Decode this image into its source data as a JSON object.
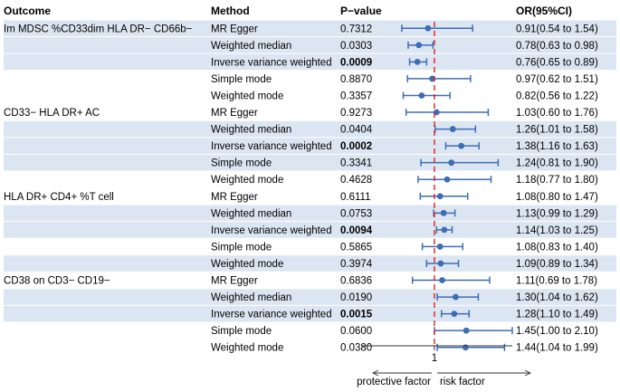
{
  "chart_data": {
    "type": "forest",
    "headers": {
      "outcome": "Outcome",
      "method": "Method",
      "pvalue": "P−value",
      "or": "OR(95%CI)"
    },
    "reference_value": 1,
    "reference_label": "1",
    "xlim": [
      0.4,
      2.1
    ],
    "axis_labels": {
      "left": "protective factor",
      "right": "risk factor"
    },
    "colors": {
      "shade": "#dce6f2",
      "point": "#3d6db5",
      "reference": "#e02020",
      "text": "#111111"
    },
    "rows": [
      {
        "outcome": "Im MDSC %CD33dim HLA DR− CD66b−",
        "method": "MR Egger",
        "pvalue": "0.7312",
        "bold_p": false,
        "or": 0.91,
        "lo": 0.54,
        "hi": 1.54,
        "label": "0.91(0.54 to 1.54)",
        "shaded": true
      },
      {
        "outcome": "",
        "method": "Weighted median",
        "pvalue": "0.0303",
        "bold_p": false,
        "or": 0.78,
        "lo": 0.63,
        "hi": 0.98,
        "label": "0.78(0.63 to 0.98)",
        "shaded": true
      },
      {
        "outcome": "",
        "method": "Inverse variance weighted",
        "pvalue": "0.0009",
        "bold_p": true,
        "or": 0.76,
        "lo": 0.65,
        "hi": 0.89,
        "label": "0.76(0.65 to 0.89)",
        "shaded": true
      },
      {
        "outcome": "",
        "method": "Simple mode",
        "pvalue": "0.8870",
        "bold_p": false,
        "or": 0.97,
        "lo": 0.62,
        "hi": 1.51,
        "label": "0.97(0.62 to 1.51)",
        "shaded": false
      },
      {
        "outcome": "",
        "method": "Weighted mode",
        "pvalue": "0.3357",
        "bold_p": false,
        "or": 0.82,
        "lo": 0.56,
        "hi": 1.22,
        "label": "0.82(0.56 to 1.22)",
        "shaded": false
      },
      {
        "outcome": "CD33− HLA DR+ AC",
        "method": "MR Egger",
        "pvalue": "0.9273",
        "bold_p": false,
        "or": 1.03,
        "lo": 0.6,
        "hi": 1.76,
        "label": "1.03(0.60 to 1.76)",
        "shaded": false
      },
      {
        "outcome": "",
        "method": "Weighted median",
        "pvalue": "0.0404",
        "bold_p": false,
        "or": 1.26,
        "lo": 1.01,
        "hi": 1.58,
        "label": "1.26(1.01 to 1.58)",
        "shaded": true
      },
      {
        "outcome": "",
        "method": "Inverse variance weighted",
        "pvalue": "0.0002",
        "bold_p": true,
        "or": 1.38,
        "lo": 1.16,
        "hi": 1.63,
        "label": "1.38(1.16 to 1.63)",
        "shaded": true
      },
      {
        "outcome": "",
        "method": "Simple mode",
        "pvalue": "0.3341",
        "bold_p": false,
        "or": 1.24,
        "lo": 0.81,
        "hi": 1.9,
        "label": "1.24(0.81 to 1.90)",
        "shaded": true
      },
      {
        "outcome": "",
        "method": "Weighted mode",
        "pvalue": "0.4628",
        "bold_p": false,
        "or": 1.18,
        "lo": 0.77,
        "hi": 1.8,
        "label": "1.18(0.77 to 1.80)",
        "shaded": false
      },
      {
        "outcome": "HLA DR+ CD4+ %T cell",
        "method": "MR Egger",
        "pvalue": "0.6111",
        "bold_p": false,
        "or": 1.08,
        "lo": 0.8,
        "hi": 1.47,
        "label": "1.08(0.80 to 1.47)",
        "shaded": false
      },
      {
        "outcome": "",
        "method": "Weighted median",
        "pvalue": "0.0753",
        "bold_p": false,
        "or": 1.13,
        "lo": 0.99,
        "hi": 1.29,
        "label": "1.13(0.99 to 1.29)",
        "shaded": true
      },
      {
        "outcome": "",
        "method": "Inverse variance weighted",
        "pvalue": "0.0094",
        "bold_p": true,
        "or": 1.14,
        "lo": 1.03,
        "hi": 1.25,
        "label": "1.14(1.03 to 1.25)",
        "shaded": true
      },
      {
        "outcome": "",
        "method": "Simple mode",
        "pvalue": "0.5865",
        "bold_p": false,
        "or": 1.08,
        "lo": 0.83,
        "hi": 1.4,
        "label": "1.08(0.83 to 1.40)",
        "shaded": false
      },
      {
        "outcome": "",
        "method": "Weighted mode",
        "pvalue": "0.3974",
        "bold_p": false,
        "or": 1.09,
        "lo": 0.89,
        "hi": 1.34,
        "label": "1.09(0.89 to 1.34)",
        "shaded": true
      },
      {
        "outcome": "CD38 on CD3− CD19−",
        "method": "MR Egger",
        "pvalue": "0.6836",
        "bold_p": false,
        "or": 1.11,
        "lo": 0.69,
        "hi": 1.78,
        "label": "1.11(0.69 to 1.78)",
        "shaded": false
      },
      {
        "outcome": "",
        "method": "Weighted median",
        "pvalue": "0.0190",
        "bold_p": false,
        "or": 1.3,
        "lo": 1.04,
        "hi": 1.62,
        "label": "1.30(1.04 to 1.62)",
        "shaded": true
      },
      {
        "outcome": "",
        "method": "Inverse variance weighted",
        "pvalue": "0.0015",
        "bold_p": true,
        "or": 1.28,
        "lo": 1.1,
        "hi": 1.49,
        "label": "1.28(1.10 to 1.49)",
        "shaded": true
      },
      {
        "outcome": "",
        "method": "Simple mode",
        "pvalue": "0.0600",
        "bold_p": false,
        "or": 1.45,
        "lo": 1.0,
        "hi": 2.1,
        "label": "1.45(1.00 to 2.10)",
        "shaded": false
      },
      {
        "outcome": "",
        "method": "Weighted mode",
        "pvalue": "0.0380",
        "bold_p": false,
        "or": 1.44,
        "lo": 1.04,
        "hi": 1.99,
        "label": "1.44(1.04 to 1.99)",
        "shaded": false
      }
    ]
  }
}
